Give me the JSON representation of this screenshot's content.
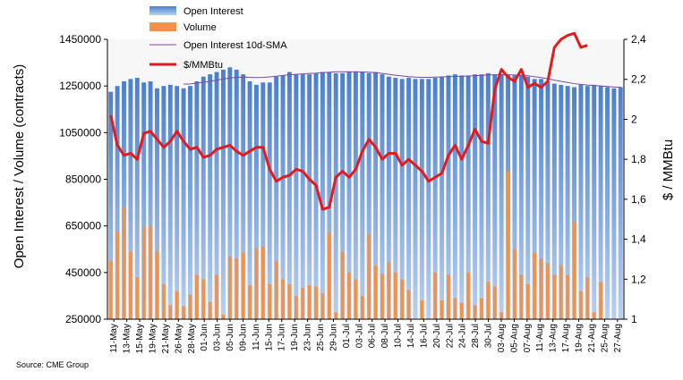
{
  "chart_data": {
    "type": "bar",
    "source": "Source: CME Group",
    "ylabel_left": "Open Interest / Volume (contracts)",
    "ylabel_right": "$ / MMBtu",
    "left_axis": {
      "min": 250000,
      "max": 1450000,
      "ticks": [
        "250000",
        "450000",
        "650000",
        "850000",
        "1050000",
        "1250000",
        "1450000"
      ]
    },
    "right_axis": {
      "min": 1.0,
      "max": 2.4,
      "ticks": [
        "1",
        "1,2",
        "1,4",
        "1,6",
        "1,8",
        "2",
        "2,2",
        "2,4"
      ]
    },
    "x_tick_labels": [
      "11-May",
      "13-May",
      "15-May",
      "19-May",
      "21-May",
      "26-May",
      "28-May",
      "01-Jun",
      "03-Jun",
      "05-Jun",
      "09-Jun",
      "11-Jun",
      "15-Jun",
      "17-Jun",
      "19-Jun",
      "23-Jun",
      "25-Jun",
      "29-Jun",
      "01-Jul",
      "03-Jul",
      "06-Jul",
      "08-Jul",
      "10-Jul",
      "14-Jul",
      "16-Jul",
      "20-Jul",
      "22-Jul",
      "24-Jul",
      "28-Jul",
      "30-Jul",
      "03-Aug",
      "05-Aug",
      "07-Aug",
      "11-Aug",
      "13-Aug",
      "17-Aug",
      "19-Aug",
      "21-Aug",
      "25-Aug",
      "27-Aug"
    ],
    "legend": [
      {
        "label": "Open Interest",
        "kind": "bar",
        "color": "#5b8fd6"
      },
      {
        "label": "Volume",
        "kind": "bar",
        "color": "#f0924c"
      },
      {
        "label": "Open Interest 10d-SMA",
        "kind": "line-thin",
        "color": "#7a4aa0"
      },
      {
        "label": "$/MMBtu",
        "kind": "line-thick",
        "color": "#e41a1c"
      }
    ],
    "series": [
      {
        "name": "Open Interest",
        "axis": "left",
        "values": [
          1225000,
          1250000,
          1270000,
          1280000,
          1285000,
          1265000,
          1270000,
          1240000,
          1250000,
          1255000,
          1250000,
          1240000,
          1250000,
          1270000,
          1290000,
          1300000,
          1310000,
          1320000,
          1330000,
          1320000,
          1300000,
          1270000,
          1255000,
          1265000,
          1265000,
          1290000,
          1295000,
          1310000,
          1300000,
          1300000,
          1300000,
          1305000,
          1310000,
          1310000,
          1305000,
          1305000,
          1310000,
          1310000,
          1310000,
          1305000,
          1310000,
          1300000,
          1290000,
          1285000,
          1280000,
          1285000,
          1280000,
          1280000,
          1280000,
          1285000,
          1290000,
          1295000,
          1300000,
          1295000,
          1295000,
          1300000,
          1300000,
          1305000,
          1300000,
          1300000,
          1300000,
          1295000,
          1295000,
          1290000,
          1280000,
          1280000,
          1270000,
          1260000,
          1255000,
          1250000,
          1245000,
          1255000,
          1250000,
          1255000,
          1250000,
          1245000,
          1240000,
          1245000
        ]
      },
      {
        "name": "Volume",
        "axis": "left",
        "values": [
          500000,
          625000,
          730000,
          540000,
          430000,
          645000,
          650000,
          540000,
          400000,
          310000,
          370000,
          305000,
          355000,
          440000,
          420000,
          325000,
          440000,
          270000,
          520000,
          510000,
          535000,
          395000,
          555000,
          560000,
          400000,
          500000,
          420000,
          400000,
          350000,
          385000,
          395000,
          390000,
          360000,
          620000,
          280000,
          540000,
          450000,
          420000,
          350000,
          615000,
          480000,
          445000,
          495000,
          450000,
          420000,
          375000,
          null,
          330000,
          null,
          450000,
          330000,
          440000,
          340000,
          320000,
          450000,
          310000,
          340000,
          410000,
          390000,
          280000,
          885000,
          550000,
          440000,
          400000,
          535000,
          510000,
          490000,
          440000,
          480000,
          440000,
          665000,
          370000,
          430000,
          280000,
          410000,
          null,
          null,
          null
        ]
      },
      {
        "name": "Open Interest 10d-SMA",
        "axis": "left",
        "values": [
          null,
          null,
          null,
          null,
          null,
          null,
          null,
          null,
          null,
          null,
          null,
          1258000,
          1259000,
          1262000,
          1266000,
          1270000,
          1275000,
          1280000,
          1284000,
          1287000,
          1288000,
          1287000,
          1286000,
          1287000,
          1289000,
          1292000,
          1295000,
          1298000,
          1300000,
          1302000,
          1304000,
          1305000,
          1307000,
          1309000,
          1311000,
          1311000,
          1311000,
          1311000,
          1310000,
          1309000,
          1307000,
          1304000,
          1300000,
          1296000,
          1293000,
          1290000,
          1288000,
          1287000,
          1287000,
          1288000,
          1289000,
          1290000,
          1291000,
          1292000,
          1293000,
          1294000,
          1296000,
          1297000,
          1298000,
          1298000,
          1298000,
          1297000,
          1296000,
          1294000,
          1290000,
          1286000,
          1281000,
          1275000,
          1270000,
          1265000,
          1260000,
          1257000,
          1254000,
          1252000,
          1250000,
          1248000,
          1246000,
          1245000
        ]
      },
      {
        "name": "$/MMBtu",
        "axis": "right",
        "values": [
          2.02,
          1.87,
          1.82,
          1.83,
          1.8,
          1.93,
          1.94,
          1.9,
          1.86,
          1.89,
          1.94,
          1.89,
          1.85,
          1.86,
          1.81,
          1.82,
          1.85,
          1.86,
          1.87,
          1.84,
          1.82,
          1.84,
          1.86,
          1.86,
          1.75,
          1.69,
          1.71,
          1.72,
          1.75,
          1.74,
          1.7,
          1.67,
          1.55,
          1.56,
          1.71,
          1.74,
          1.71,
          1.75,
          1.84,
          1.9,
          1.86,
          1.8,
          1.83,
          1.83,
          1.77,
          1.8,
          1.77,
          1.74,
          1.69,
          1.71,
          1.73,
          1.82,
          1.87,
          1.8,
          1.87,
          1.95,
          1.89,
          1.88,
          2.15,
          2.25,
          2.21,
          2.19,
          2.25,
          2.16,
          2.18,
          2.16,
          2.19,
          2.36,
          2.4,
          2.42,
          2.43,
          2.36,
          2.37,
          null,
          null,
          null,
          null,
          null
        ]
      }
    ]
  }
}
